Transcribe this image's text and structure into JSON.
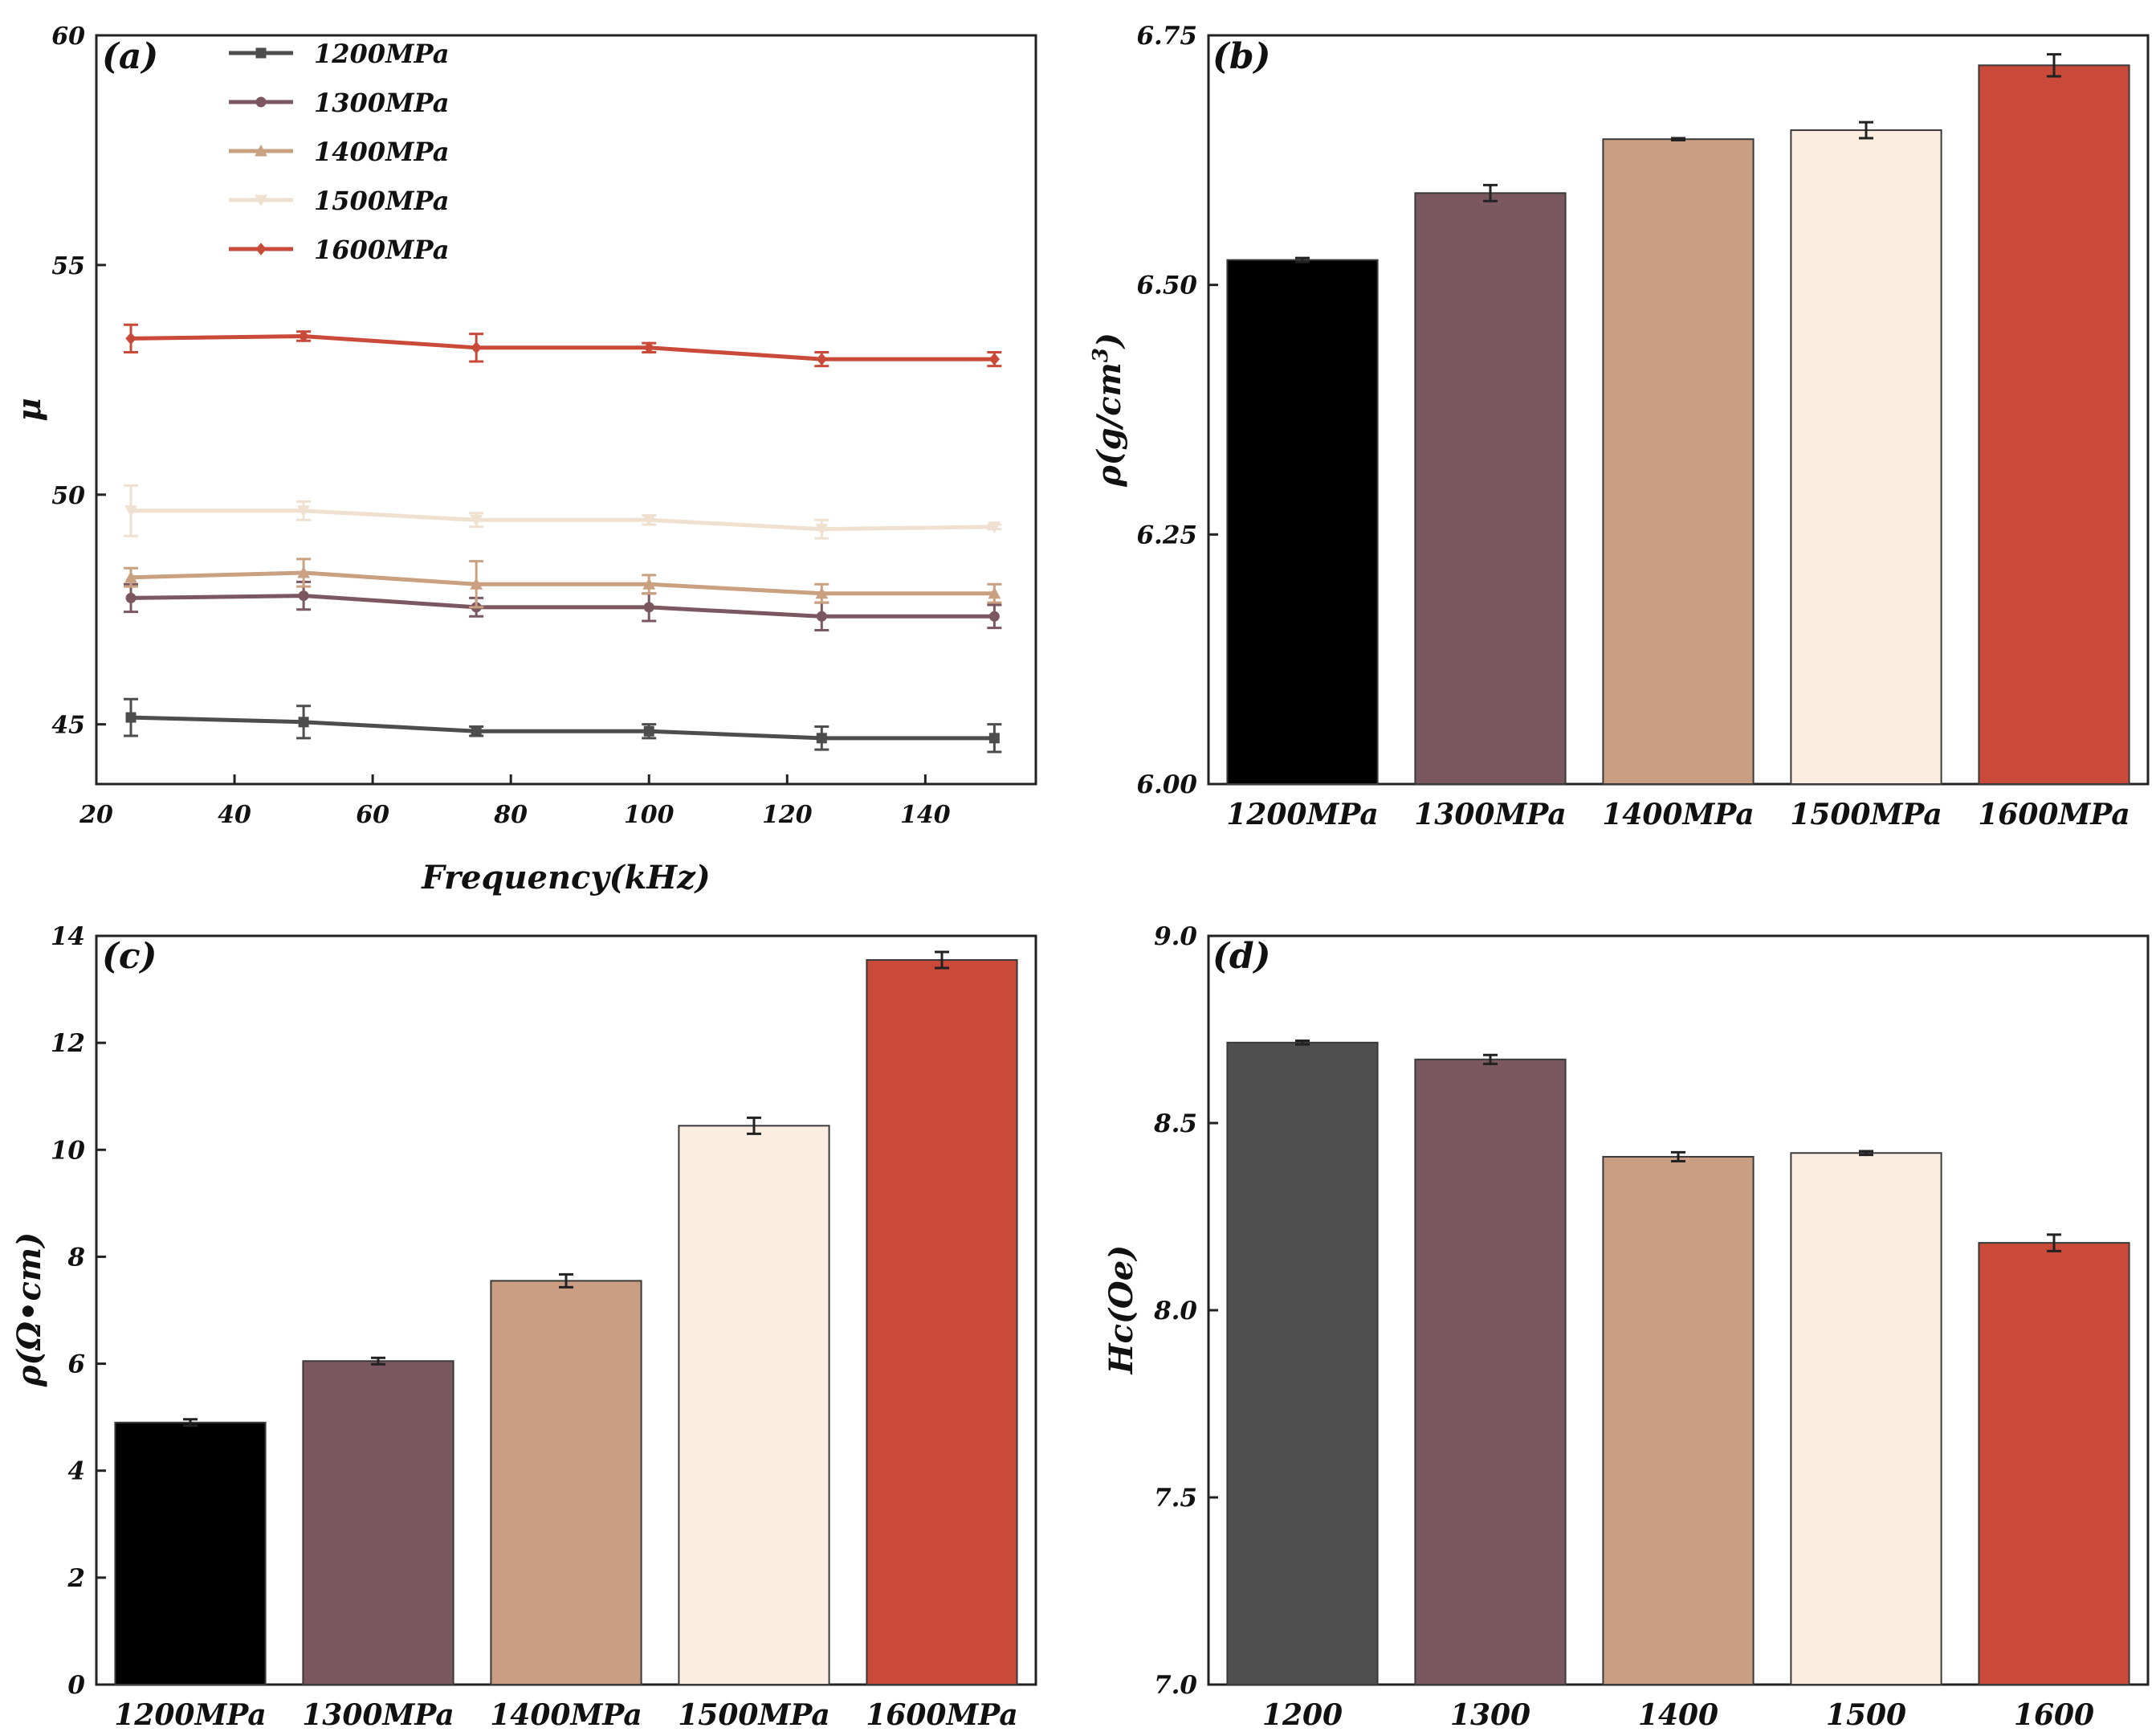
{
  "chart_data": [
    {
      "id": "a",
      "type": "line",
      "panel_label": "(a)",
      "title": "",
      "xlabel": "Frequency(kHz)",
      "ylabel": "μ",
      "xlim": [
        20,
        156
      ],
      "ylim": [
        43.7,
        60
      ],
      "xticks": [
        20,
        40,
        60,
        80,
        100,
        120,
        140
      ],
      "yticks": [
        45,
        50,
        55,
        60
      ],
      "grid": false,
      "legend_position": "top-left",
      "x": [
        25,
        50,
        75,
        100,
        125,
        150
      ],
      "series": [
        {
          "name": "1200MPa",
          "color": "#4d4d4d",
          "marker": "square",
          "values": [
            45.15,
            45.05,
            44.85,
            44.85,
            44.7,
            44.7
          ],
          "errors": [
            0.4,
            0.35,
            0.1,
            0.15,
            0.25,
            0.3
          ]
        },
        {
          "name": "1300MPa",
          "color": "#7b5760",
          "marker": "circle",
          "values": [
            47.75,
            47.8,
            47.55,
            47.55,
            47.35,
            47.35
          ],
          "errors": [
            0.3,
            0.3,
            0.2,
            0.3,
            0.3,
            0.25
          ]
        },
        {
          "name": "1400MPa",
          "color": "#c9a080",
          "marker": "triangle-up",
          "values": [
            48.2,
            48.3,
            48.05,
            48.05,
            47.85,
            47.85
          ],
          "errors": [
            0.2,
            0.3,
            0.5,
            0.2,
            0.2,
            0.2
          ]
        },
        {
          "name": "1500MPa",
          "color": "#efe0d0",
          "marker": "triangle-down",
          "values": [
            49.65,
            49.65,
            49.45,
            49.45,
            49.25,
            49.3
          ],
          "errors": [
            0.55,
            0.2,
            0.15,
            0.1,
            0.2,
            0.05
          ]
        },
        {
          "name": "1600MPa",
          "color": "#c94a38",
          "marker": "diamond",
          "values": [
            53.4,
            53.45,
            53.2,
            53.2,
            52.95,
            52.95
          ],
          "errors": [
            0.3,
            0.1,
            0.3,
            0.1,
            0.15,
            0.15
          ]
        }
      ]
    },
    {
      "id": "b",
      "type": "bar",
      "panel_label": "(b)",
      "title": "",
      "xlabel": "",
      "ylabel": "ρ(g/cm",
      "ylabel_superscript": "3",
      "ylabel_suffix": ")",
      "ylim": [
        6.0,
        6.75
      ],
      "yticks": [
        "6.00",
        "6.25",
        "6.50",
        "6.75"
      ],
      "grid": false,
      "categories": [
        "1200MPa",
        "1300MPa",
        "1400MPa",
        "1500MPa",
        "1600MPa"
      ],
      "values": [
        6.525,
        6.592,
        6.646,
        6.655,
        6.72
      ],
      "errors": [
        0.002,
        0.008,
        0.001,
        0.008,
        0.011
      ],
      "colors": [
        "#000000",
        "#7b5760",
        "#c99e82",
        "#fbeee0",
        "#c94a38"
      ]
    },
    {
      "id": "c",
      "type": "bar",
      "panel_label": "(c)",
      "title": "",
      "xlabel": "",
      "ylabel": "ρ(Ω•cm)",
      "ylim": [
        0,
        14
      ],
      "yticks": [
        "0",
        "2",
        "4",
        "6",
        "8",
        "10",
        "12",
        "14"
      ],
      "grid": false,
      "categories": [
        "1200MPa",
        "1300MPa",
        "1400MPa",
        "1500MPa",
        "1600MPa"
      ],
      "values": [
        4.9,
        6.05,
        7.55,
        10.45,
        13.55
      ],
      "errors": [
        0.06,
        0.06,
        0.12,
        0.15,
        0.15
      ],
      "colors": [
        "#000000",
        "#7b5760",
        "#c99e82",
        "#fbeee0",
        "#c94a38"
      ]
    },
    {
      "id": "d",
      "type": "bar",
      "panel_label": "(d)",
      "title": "",
      "xlabel": "",
      "ylabel": "Hc(Oe)",
      "ylim": [
        7.0,
        9.0
      ],
      "yticks": [
        "7.0",
        "7.5",
        "8.0",
        "8.5",
        "9.0"
      ],
      "grid": false,
      "categories": [
        "1200",
        "1300",
        "1400",
        "1500",
        "1600"
      ],
      "values": [
        8.715,
        8.67,
        8.41,
        8.42,
        8.18
      ],
      "errors": [
        0.005,
        0.012,
        0.012,
        0.005,
        0.022
      ],
      "colors": [
        "#4f4f4f",
        "#7b5760",
        "#c99e82",
        "#fbeee0",
        "#c94a38"
      ]
    }
  ]
}
